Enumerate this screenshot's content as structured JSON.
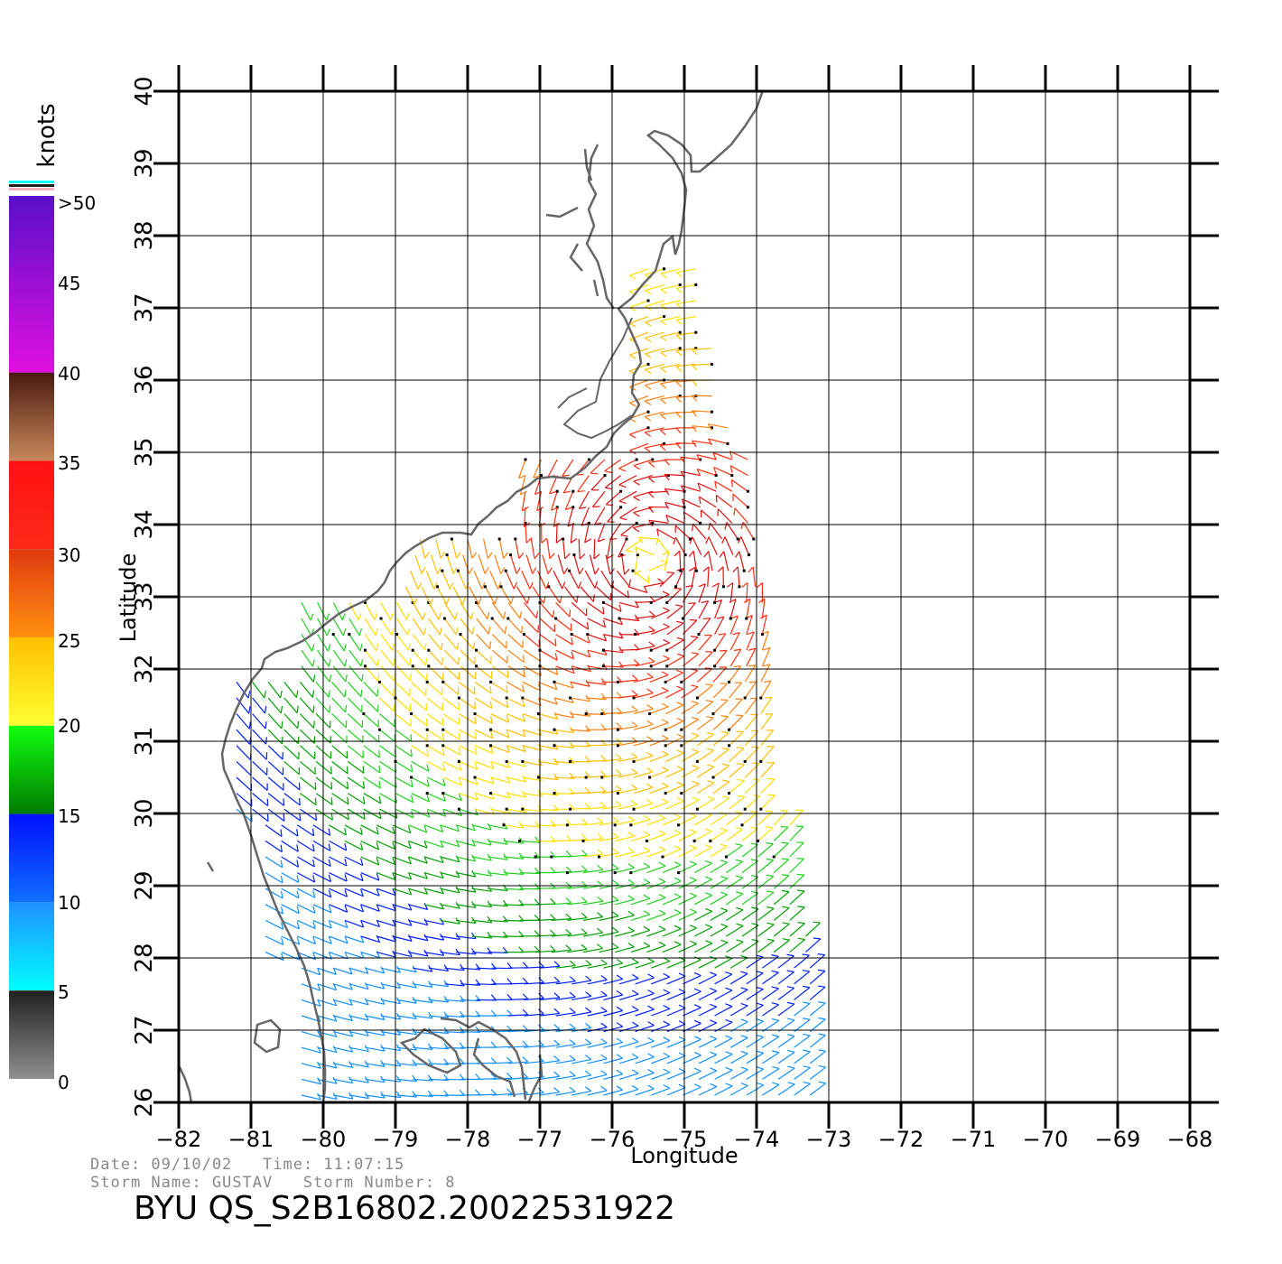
{
  "axes": {
    "xlabel": "Longitude",
    "ylabel": "Latitude",
    "xlim": [
      -82,
      -68
    ],
    "ylim": [
      26,
      40
    ],
    "x_ticks": [
      "−82",
      "−81",
      "−80",
      "−79",
      "−78",
      "−77",
      "−76",
      "−75",
      "−74",
      "−73",
      "−72",
      "−71",
      "−70",
      "−69",
      "−68"
    ],
    "y_ticks": [
      "26",
      "27",
      "28",
      "29",
      "30",
      "31",
      "32",
      "33",
      "34",
      "35",
      "36",
      "37",
      "38",
      "39",
      "40"
    ]
  },
  "colorbar": {
    "unit": "knots",
    "labels": [
      ">50",
      "45",
      "40",
      "35",
      "30",
      "25",
      "20",
      "15",
      "10",
      "5",
      "0"
    ],
    "bands": [
      {
        "from": 50,
        "to": 40,
        "top": "#5a0fc8",
        "bottom": "#e010e0"
      },
      {
        "from": 40,
        "to": 35,
        "top": "#4a1a10",
        "bottom": "#c8885a"
      },
      {
        "from": 35,
        "to": 30,
        "top": "#ff1010",
        "bottom": "#ff2a1a"
      },
      {
        "from": 30,
        "to": 25,
        "top": "#e03a10",
        "bottom": "#ff9010"
      },
      {
        "from": 25,
        "to": 20,
        "top": "#ffc000",
        "bottom": "#ffff30"
      },
      {
        "from": 20,
        "to": 15,
        "top": "#10ff10",
        "bottom": "#007a00"
      },
      {
        "from": 15,
        "to": 10,
        "top": "#0010ff",
        "bottom": "#1070ff"
      },
      {
        "from": 10,
        "to": 5,
        "top": "#2090ff",
        "bottom": "#00ffff"
      },
      {
        "from": 5,
        "to": 0,
        "top": "#202020",
        "bottom": "#909090"
      }
    ],
    "cap_colors": [
      "#00ffff",
      "#202020",
      "#ffb0c0"
    ]
  },
  "storm": {
    "date_line": "Date: 09/10/02   Time: 11:07:15",
    "name_line": "Storm Name: GUSTAV   Storm Number: 8",
    "title": "BYU QS_S2B16802.20022531922",
    "center": {
      "lon": -75.5,
      "lat": 33.5
    }
  },
  "colors": {
    "coast": "#666666",
    "grid": "#000000",
    "speed_colors": [
      "#1090ff",
      "#0020ff",
      "#00a000",
      "#20d020",
      "#ffe000",
      "#ffc000",
      "#ff8010",
      "#ff3010",
      "#e01010"
    ]
  }
}
